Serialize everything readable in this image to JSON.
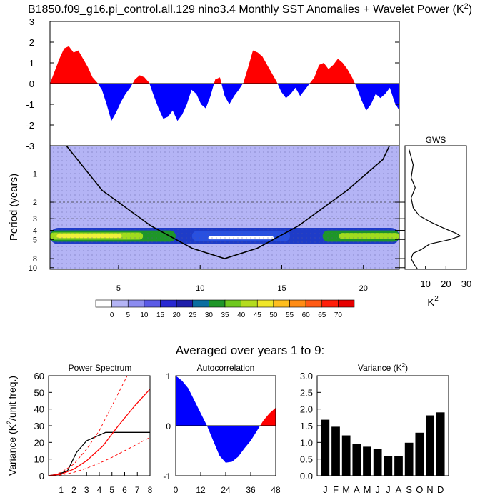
{
  "top_title": "B1850.f09_g16.pi_control.all.129 nino3.4 Monthly SST Anomalies + Wavelet Power (K",
  "superscript_two": "2",
  "close_paren": ")",
  "colors": {
    "positive": "#ff0000",
    "negative": "#0000ff",
    "wavelet_background": "#b4b4f5",
    "stipple": "#555599"
  },
  "chart_data": [
    {
      "type": "area",
      "name": "sst-anomaly",
      "x_range": [
        0,
        22.2
      ],
      "ylim": [
        -3,
        3
      ],
      "y_ticks": [
        3,
        2,
        1,
        0,
        -1,
        -2,
        -3
      ],
      "fill_positive": "#ff0000",
      "fill_negative": "#0000ff",
      "x": [
        0,
        0.3,
        0.6,
        0.9,
        1.2,
        1.5,
        1.8,
        2.1,
        2.4,
        2.7,
        3.0,
        3.3,
        3.6,
        3.9,
        4.2,
        4.5,
        4.8,
        5.1,
        5.4,
        5.7,
        6.0,
        6.3,
        6.6,
        6.9,
        7.2,
        7.5,
        7.8,
        8.1,
        8.4,
        8.7,
        9.0,
        9.3,
        9.6,
        9.9,
        10.2,
        10.5,
        10.8,
        11.1,
        11.4,
        11.7,
        12.0,
        12.3,
        12.6,
        12.9,
        13.2,
        13.5,
        13.8,
        14.1,
        14.4,
        14.7,
        15.0,
        15.3,
        15.6,
        15.9,
        16.2,
        16.5,
        16.8,
        17.1,
        17.4,
        17.7,
        18.0,
        18.3,
        18.6,
        18.9,
        19.2,
        19.5,
        19.8,
        20.1,
        20.4,
        20.7,
        21.0,
        21.3,
        21.6,
        21.9,
        22.2
      ],
      "y": [
        0.0,
        0.6,
        1.2,
        1.7,
        1.8,
        1.5,
        1.6,
        1.2,
        0.8,
        0.3,
        0.05,
        -0.3,
        -1.0,
        -1.8,
        -1.4,
        -0.9,
        -0.5,
        -0.2,
        0.2,
        0.4,
        0.3,
        0.05,
        -0.6,
        -1.2,
        -1.7,
        -1.6,
        -1.3,
        -1.8,
        -1.5,
        -1.0,
        -0.3,
        -0.5,
        -1.0,
        -1.2,
        -0.6,
        0.2,
        0.3,
        -0.6,
        -1.0,
        -0.6,
        -0.3,
        0.05,
        0.8,
        1.6,
        1.5,
        1.3,
        0.9,
        0.5,
        0.1,
        -0.4,
        -0.7,
        -0.5,
        -0.2,
        -0.6,
        -0.3,
        0.0,
        0.3,
        0.9,
        1.0,
        0.7,
        0.9,
        1.2,
        1.0,
        0.7,
        0.3,
        -0.2,
        -0.8,
        -1.3,
        -1.0,
        -0.5,
        -0.7,
        -0.5,
        -0.2,
        -0.9,
        -1.3
      ]
    },
    {
      "type": "heatmap",
      "name": "wavelet-power",
      "x_ticks": [
        5,
        10,
        15,
        20
      ],
      "x_range": [
        0.8,
        22.2
      ],
      "period_ticks": [
        1,
        2,
        3,
        4,
        5,
        8,
        10
      ],
      "period_range": [
        0.5,
        10.4
      ],
      "period_log_scale": true,
      "corner_label": "-3",
      "ylabel": "Period (years)",
      "dashed_periods": [
        2,
        3
      ],
      "significance_hatching": true,
      "cone_of_influence": [
        [
          1.2,
          0.5
        ],
        [
          1.8,
          0.5
        ],
        [
          4,
          1.5
        ],
        [
          7,
          3.6
        ],
        [
          9.5,
          6.2
        ],
        [
          11.5,
          8.0
        ],
        [
          13.5,
          6.2
        ],
        [
          16,
          3.6
        ],
        [
          19,
          1.5
        ],
        [
          21.2,
          0.7
        ],
        [
          21.6,
          0.5
        ]
      ],
      "bands": [
        {
          "period": 4.6,
          "x": [
            0.8,
            22.2
          ],
          "thickness": 0.32,
          "color": "#1e3cc8"
        },
        {
          "period": 4.6,
          "x": [
            0.8,
            8.5
          ],
          "thickness": 0.22,
          "color": "#1e9628"
        },
        {
          "period": 4.6,
          "x": [
            0.8,
            6.5
          ],
          "thickness": 0.14,
          "color": "#a0dc1e"
        },
        {
          "period": 4.6,
          "x": [
            1.2,
            5.2
          ],
          "thickness": 0.07,
          "color": "#f0f03c"
        },
        {
          "period": 4.6,
          "x": [
            17.5,
            22.2
          ],
          "thickness": 0.22,
          "color": "#1e9628"
        },
        {
          "period": 4.6,
          "x": [
            18.5,
            22.2
          ],
          "thickness": 0.12,
          "color": "#a0dc1e"
        },
        {
          "period": 4.6,
          "x": [
            9.5,
            15.5
          ],
          "thickness": 0.2,
          "color": "#2850e0"
        },
        {
          "period": 4.8,
          "x": [
            10.5,
            14.5
          ],
          "thickness": 0.06,
          "color": "#ffffff"
        }
      ]
    },
    {
      "type": "line",
      "name": "global-wavelet-spectrum",
      "title": "GWS",
      "x_ticks": [
        10,
        20,
        30
      ],
      "xlim": [
        0,
        30
      ],
      "xlabel": "K",
      "points": [
        [
          2,
          0.55
        ],
        [
          4,
          0.8
        ],
        [
          3,
          1.1
        ],
        [
          5,
          1.4
        ],
        [
          3,
          1.8
        ],
        [
          4,
          2.3
        ],
        [
          7,
          2.8
        ],
        [
          13,
          3.3
        ],
        [
          19,
          3.8
        ],
        [
          25,
          4.3
        ],
        [
          27,
          4.6
        ],
        [
          22,
          5.0
        ],
        [
          12,
          5.6
        ],
        [
          8,
          6.4
        ],
        [
          4,
          7.0
        ],
        [
          3,
          8.0
        ],
        [
          4,
          8.8
        ],
        [
          5,
          9.6
        ],
        [
          6,
          10.2
        ]
      ]
    },
    {
      "type": "legend",
      "name": "colorbar",
      "tick_labels": [
        "0",
        "5",
        "10",
        "15",
        "20",
        "25",
        "30",
        "35",
        "40",
        "45",
        "50",
        "55",
        "60",
        "65",
        "70"
      ],
      "colors": [
        "#ffffff",
        "#b4b4f5",
        "#8c8cf0",
        "#5a5ae6",
        "#2828d2",
        "#1e1eaa",
        "#0a6ea0",
        "#1e9628",
        "#6ec81e",
        "#b4dc1e",
        "#f0e628",
        "#ffbe1e",
        "#ff8c14",
        "#ff5a14",
        "#ff1e0a",
        "#e60000"
      ]
    },
    {
      "type": "line",
      "name": "power-spectrum",
      "section_title": "Averaged over years 1 to 9:",
      "title": "Power Spectrum",
      "ylabel": "Variance (K",
      "ylabel_tail": "/unit freq.)",
      "xlim": [
        0,
        8
      ],
      "ylim": [
        0,
        60
      ],
      "x_ticks": [
        1,
        2,
        3,
        4,
        5,
        6,
        7,
        8
      ],
      "y_ticks": [
        0,
        10,
        20,
        30,
        40,
        50,
        60
      ],
      "series": [
        {
          "color": "#000000",
          "style": "solid",
          "points": [
            [
              0,
              0
            ],
            [
              0.8,
              1
            ],
            [
              1.5,
              3
            ],
            [
              2.2,
              14
            ],
            [
              3,
              21
            ],
            [
              4.5,
              26
            ],
            [
              8,
              26
            ]
          ]
        },
        {
          "color": "#ff0000",
          "style": "solid",
          "points": [
            [
              0,
              0
            ],
            [
              1,
              1
            ],
            [
              2,
              4
            ],
            [
              3,
              9
            ],
            [
              4.3,
              18
            ],
            [
              5.5,
              30
            ],
            [
              6.8,
              42
            ],
            [
              8,
              52
            ]
          ]
        },
        {
          "color": "#ff0000",
          "style": "dashed",
          "points": [
            [
              0,
              0
            ],
            [
              1,
              2
            ],
            [
              2,
              7
            ],
            [
              3,
              16
            ],
            [
              4,
              27
            ],
            [
              5,
              42
            ],
            [
              6.2,
              60
            ]
          ]
        },
        {
          "color": "#ff0000",
          "style": "dashed",
          "points": [
            [
              0,
              0
            ],
            [
              1,
              0.5
            ],
            [
              2,
              2
            ],
            [
              3,
              4.5
            ],
            [
              4,
              7.5
            ],
            [
              5,
              11
            ],
            [
              6.5,
              17
            ],
            [
              8,
              23
            ]
          ]
        }
      ]
    },
    {
      "type": "area",
      "name": "autocorrelation",
      "title": "Autocorrelation",
      "xlim": [
        0,
        48
      ],
      "ylim": [
        -1,
        1
      ],
      "x_ticks": [
        0,
        12,
        24,
        36,
        48
      ],
      "y_ticks": [
        1,
        0,
        -1
      ],
      "x": [
        0,
        3,
        6,
        9,
        12,
        15,
        18,
        21,
        24,
        27,
        30,
        33,
        36,
        39,
        42,
        45,
        48
      ],
      "y": [
        1.0,
        0.9,
        0.75,
        0.5,
        0.25,
        0.0,
        -0.3,
        -0.6,
        -0.74,
        -0.72,
        -0.62,
        -0.45,
        -0.3,
        -0.1,
        0.1,
        0.25,
        0.36
      ]
    },
    {
      "type": "bar",
      "name": "monthly-variance",
      "title": "Variance (K",
      "title_tail": ")",
      "categories": [
        "J",
        "F",
        "M",
        "A",
        "M",
        "J",
        "J",
        "A",
        "S",
        "O",
        "N",
        "D"
      ],
      "values": [
        1.68,
        1.47,
        1.21,
        0.96,
        0.87,
        0.8,
        0.59,
        0.6,
        0.99,
        1.29,
        1.81,
        1.9
      ],
      "ylim": [
        0,
        3
      ],
      "y_ticks": [
        "0.0",
        "0.5",
        "1.0",
        "1.5",
        "2.0",
        "2.5",
        "3.0"
      ]
    }
  ]
}
